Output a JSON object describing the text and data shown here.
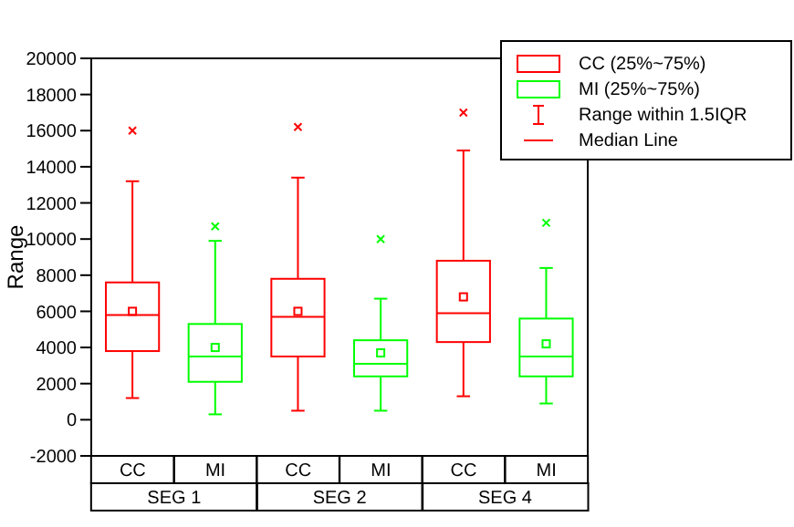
{
  "chart_data": {
    "type": "box",
    "ylabel": "Range",
    "categories": [
      "CC",
      "MI",
      "CC",
      "MI",
      "CC",
      "MI"
    ],
    "ylim": [
      -2000,
      20000
    ],
    "yticks": [
      -2000,
      0,
      2000,
      4000,
      6000,
      8000,
      10000,
      12000,
      14000,
      16000,
      18000,
      20000
    ],
    "legend": "top right",
    "series": [
      {
        "name": "CC (25%~75%)",
        "color": "#ff0000",
        "boxes": [
          {
            "low": 1200,
            "q1": 3800,
            "median": 5800,
            "q3": 7600,
            "high": 13200,
            "mean": 6000,
            "outliers": [
              16000
            ]
          },
          null,
          {
            "low": 500,
            "q1": 3500,
            "median": 5700,
            "q3": 7800,
            "high": 13400,
            "mean": 6000,
            "outliers": [
              16200
            ]
          },
          null,
          {
            "low": 1300,
            "q1": 4300,
            "median": 5900,
            "q3": 8800,
            "high": 14900,
            "mean": 6800,
            "outliers": [
              17000
            ]
          },
          null
        ]
      },
      {
        "name": "MI (25%~75%)",
        "color": "#00ff00",
        "boxes": [
          null,
          {
            "low": 300,
            "q1": 2100,
            "median": 3500,
            "q3": 5300,
            "high": 9900,
            "mean": 4000,
            "outliers": [
              10700
            ]
          },
          null,
          {
            "low": 500,
            "q1": 2400,
            "median": 3100,
            "q3": 4400,
            "high": 6700,
            "mean": 3700,
            "outliers": [
              10000
            ]
          },
          null,
          {
            "low": 900,
            "q1": 2400,
            "median": 3500,
            "q3": 5600,
            "high": 8400,
            "mean": 4200,
            "outliers": [
              10900
            ]
          }
        ]
      }
    ],
    "annotations": [
      "Range within 1.5IQR",
      "Median Line",
      "SEG 1",
      "SEG 2",
      "SEG 4"
    ]
  }
}
